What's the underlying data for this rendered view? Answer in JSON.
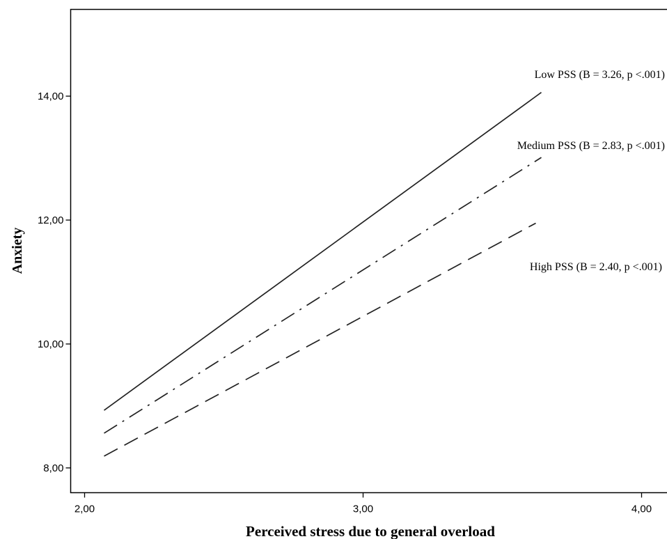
{
  "chart_data": {
    "type": "line",
    "xlabel": "Perceived stress due to general overload",
    "ylabel": "Anxiety",
    "xlim": [
      1.95,
      4.1
    ],
    "ylim": [
      7.6,
      15.4
    ],
    "xticks": [
      {
        "value": 2,
        "label": "2,00"
      },
      {
        "value": 3,
        "label": "3,00"
      },
      {
        "value": 4,
        "label": "4,00"
      }
    ],
    "yticks": [
      {
        "value": 8,
        "label": "8,00"
      },
      {
        "value": 10,
        "label": "10,00"
      },
      {
        "value": 12,
        "label": "12,00"
      },
      {
        "value": 14,
        "label": "14,00"
      }
    ],
    "grid": false,
    "legend": "none",
    "series": [
      {
        "label": "Low PSS (B = 3.26, p <.001)",
        "style": "solid",
        "x": [
          2.07,
          3.64
        ],
        "y": [
          8.93,
          14.06
        ]
      },
      {
        "label": "Medium PSS (B = 2.83, p <.001)",
        "style": "dash-dot",
        "x": [
          2.07,
          3.64
        ],
        "y": [
          8.56,
          13.01
        ]
      },
      {
        "label": "High PSS (B = 2.40, p <.001)",
        "style": "dashed",
        "x": [
          2.07,
          3.62
        ],
        "y": [
          8.19,
          11.95
        ]
      }
    ]
  }
}
